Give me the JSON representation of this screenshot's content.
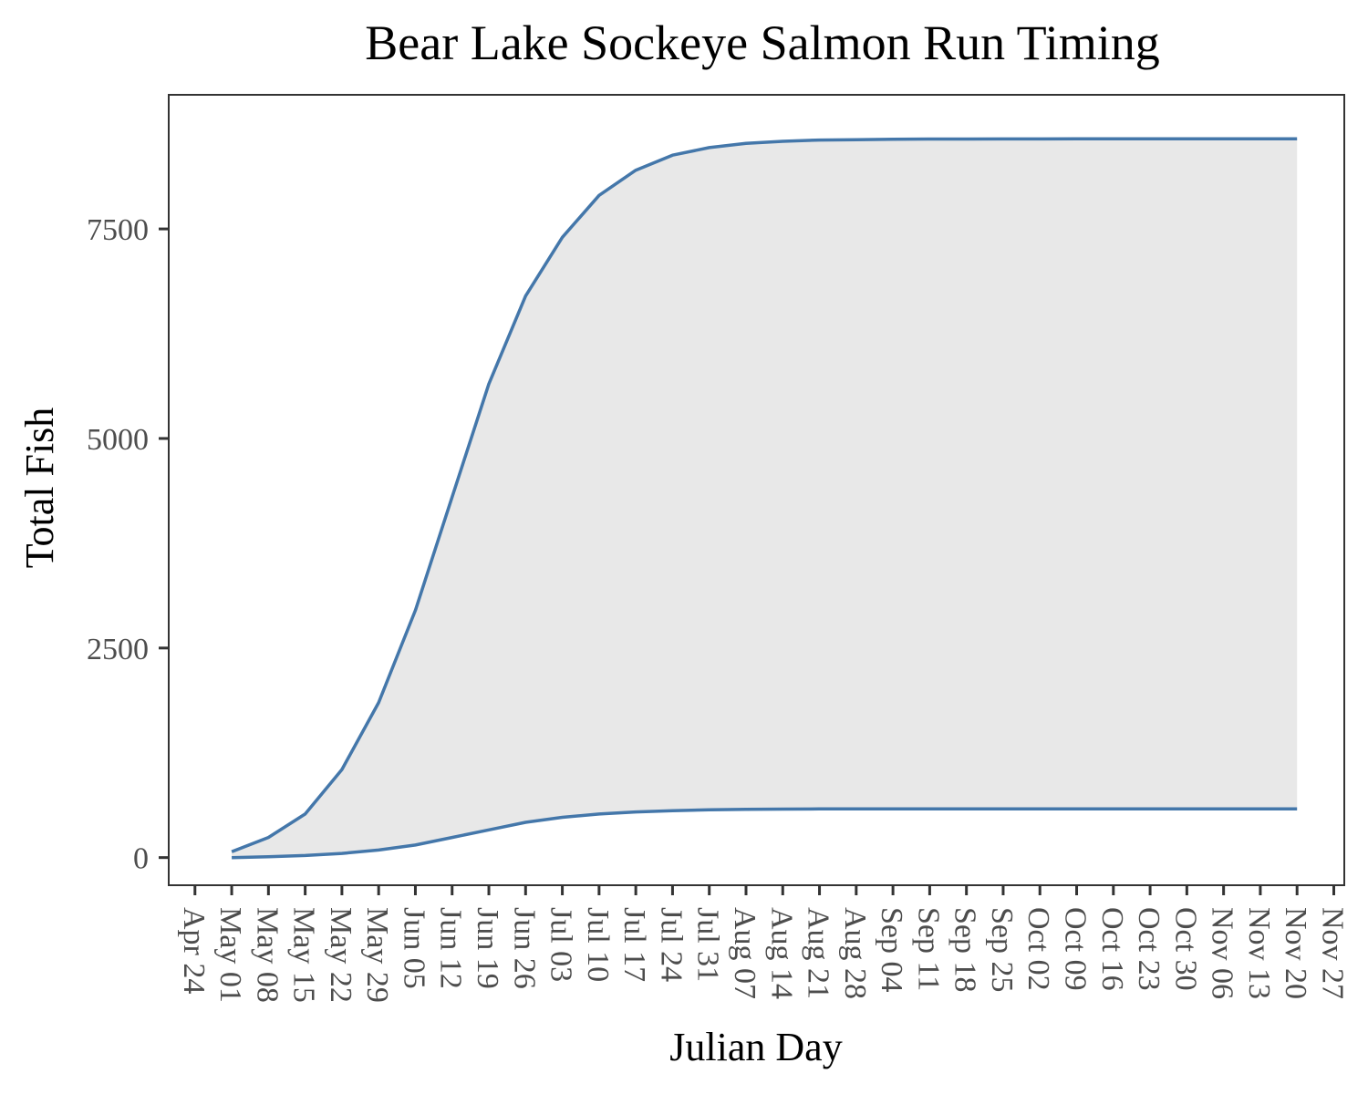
{
  "chart_data": {
    "type": "area",
    "title": "Bear Lake Sockeye Salmon Run Timing",
    "xlabel": "Julian Day",
    "ylabel": "Total Fish",
    "ylim": [
      -330,
      9100
    ],
    "xlim": [
      "2019-04-19",
      "2019-11-29"
    ],
    "y_ticks": [
      0,
      2500,
      5000,
      7500
    ],
    "x_ticks": [
      "Apr 24",
      "May 01",
      "May 08",
      "May 15",
      "May 22",
      "May 29",
      "Jun 05",
      "Jun 12",
      "Jun 19",
      "Jun 26",
      "Jul 03",
      "Jul 10",
      "Jul 17",
      "Jul 24",
      "Jul 31",
      "Aug 07",
      "Aug 14",
      "Aug 21",
      "Aug 28",
      "Sep 04",
      "Sep 11",
      "Sep 18",
      "Sep 25",
      "Oct 02",
      "Oct 09",
      "Oct 16",
      "Oct 23",
      "Oct 30",
      "Nov 06",
      "Nov 13",
      "Nov 20",
      "Nov 27"
    ],
    "x": [
      "2019-05-01",
      "2019-05-08",
      "2019-05-15",
      "2019-05-22",
      "2019-05-29",
      "2019-06-05",
      "2019-06-12",
      "2019-06-19",
      "2019-06-26",
      "2019-07-03",
      "2019-07-10",
      "2019-07-17",
      "2019-07-24",
      "2019-07-31",
      "2019-08-07",
      "2019-08-14",
      "2019-08-21",
      "2019-08-28",
      "2019-09-04",
      "2019-09-11",
      "2019-09-18",
      "2019-09-25",
      "2019-10-02",
      "2019-10-09",
      "2019-10-16",
      "2019-10-23",
      "2019-10-30",
      "2019-11-06",
      "2019-11-13",
      "2019-11-20"
    ],
    "series": [
      {
        "values": [
          70,
          240,
          520,
          1050,
          1850,
          2950,
          4300,
          5650,
          6700,
          7400,
          7900,
          8200,
          8380,
          8470,
          8520,
          8545,
          8560,
          8565,
          8570,
          8572,
          8573,
          8574,
          8574,
          8575,
          8575,
          8575,
          8575,
          8575,
          8575,
          8575
        ]
      },
      {
        "values": [
          0,
          10,
          25,
          50,
          90,
          150,
          240,
          330,
          420,
          480,
          520,
          545,
          560,
          570,
          575,
          578,
          580,
          580,
          580,
          580,
          580,
          580,
          580,
          580,
          580,
          580,
          580,
          580,
          580,
          580
        ]
      }
    ],
    "ribbon": {
      "fill": "#e8e8e8"
    },
    "line_color": "#4477aa",
    "grid": false
  }
}
